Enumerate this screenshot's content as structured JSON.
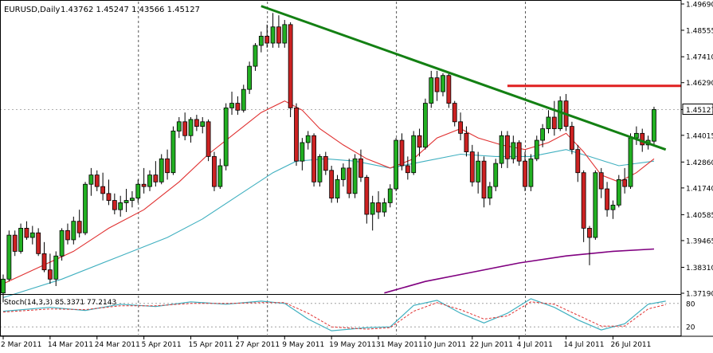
{
  "header": {
    "symbol": "EURUSD,Daily",
    "ohlc": "1.43762 1.45247 1.43566 1.45127"
  },
  "colors": {
    "background": "#ffffff",
    "bull": "#22b022",
    "bear": "#cc2222",
    "wick": "#000000",
    "ma_fast": "#e03030",
    "ma_mid": "#40b0c0",
    "ma_slow": "#800080",
    "trendline": "#138013",
    "resistance": "#e02020",
    "stoch_main": "#40b0c0",
    "stoch_signal": "#e03030",
    "grid": "#555555",
    "price_label_bg": "#ffffff"
  },
  "chart_data": [
    {
      "type": "candlestick",
      "name": "main-price-chart",
      "x_labels": [
        "2 Mar 2011",
        "14 Mar 2011",
        "24 Mar 2011",
        "5 Apr 2011",
        "15 Apr 2011",
        "27 Apr 2011",
        "9 May 2011",
        "19 May 2011",
        "31 May 2011",
        "10 Jun 2011",
        "22 Jun 2011",
        "4 Jul 2011",
        "14 Jul 2011",
        "26 Jul 2011"
      ],
      "y_ticks": [
        "1.49690",
        "1.48555",
        "1.47410",
        "1.46290",
        "1.45127",
        "1.44015",
        "1.42860",
        "1.41740",
        "1.40585",
        "1.39465",
        "1.38310",
        "1.37190"
      ],
      "ylim": [
        1.3719,
        1.4969
      ],
      "current_price": "1.45127",
      "candles": [
        [
          1.372,
          1.38,
          1.368,
          1.378
        ],
        [
          1.378,
          1.399,
          1.377,
          1.397
        ],
        [
          1.397,
          1.399,
          1.388,
          1.39
        ],
        [
          1.39,
          1.402,
          1.389,
          1.4
        ],
        [
          1.4,
          1.403,
          1.395,
          1.396
        ],
        [
          1.396,
          1.401,
          1.393,
          1.398
        ],
        [
          1.398,
          1.4,
          1.388,
          1.389
        ],
        [
          1.389,
          1.394,
          1.381,
          1.382
        ],
        [
          1.382,
          1.389,
          1.376,
          1.378
        ],
        [
          1.378,
          1.39,
          1.375,
          1.388
        ],
        [
          1.388,
          1.4,
          1.386,
          1.399
        ],
        [
          1.399,
          1.402,
          1.393,
          1.395
        ],
        [
          1.395,
          1.405,
          1.393,
          1.403
        ],
        [
          1.403,
          1.408,
          1.396,
          1.398
        ],
        [
          1.398,
          1.42,
          1.397,
          1.419
        ],
        [
          1.419,
          1.426,
          1.414,
          1.423
        ],
        [
          1.423,
          1.425,
          1.416,
          1.418
        ],
        [
          1.418,
          1.424,
          1.412,
          1.415
        ],
        [
          1.415,
          1.421,
          1.41,
          1.412
        ],
        [
          1.412,
          1.415,
          1.406,
          1.408
        ],
        [
          1.408,
          1.414,
          1.405,
          1.411
        ],
        [
          1.411,
          1.417,
          1.407,
          1.412
        ],
        [
          1.412,
          1.416,
          1.409,
          1.413
        ],
        [
          1.413,
          1.421,
          1.411,
          1.419
        ],
        [
          1.419,
          1.426,
          1.415,
          1.418
        ],
        [
          1.418,
          1.425,
          1.416,
          1.423
        ],
        [
          1.423,
          1.429,
          1.418,
          1.42
        ],
        [
          1.42,
          1.432,
          1.419,
          1.43
        ],
        [
          1.43,
          1.434,
          1.421,
          1.424
        ],
        [
          1.424,
          1.444,
          1.423,
          1.442
        ],
        [
          1.442,
          1.448,
          1.439,
          1.446
        ],
        [
          1.446,
          1.45,
          1.438,
          1.44
        ],
        [
          1.44,
          1.448,
          1.437,
          1.447
        ],
        [
          1.447,
          1.449,
          1.442,
          1.444
        ],
        [
          1.444,
          1.448,
          1.441,
          1.446
        ],
        [
          1.446,
          1.447,
          1.429,
          1.431
        ],
        [
          1.431,
          1.433,
          1.416,
          1.418
        ],
        [
          1.418,
          1.43,
          1.417,
          1.427
        ],
        [
          1.427,
          1.454,
          1.425,
          1.452
        ],
        [
          1.452,
          1.459,
          1.449,
          1.454
        ],
        [
          1.454,
          1.457,
          1.449,
          1.451
        ],
        [
          1.451,
          1.462,
          1.45,
          1.46
        ],
        [
          1.46,
          1.472,
          1.458,
          1.47
        ],
        [
          1.47,
          1.48,
          1.468,
          1.479
        ],
        [
          1.479,
          1.485,
          1.476,
          1.483
        ],
        [
          1.483,
          1.488,
          1.478,
          1.48
        ],
        [
          1.48,
          1.493,
          1.478,
          1.487
        ],
        [
          1.487,
          1.492,
          1.478,
          1.48
        ],
        [
          1.48,
          1.49,
          1.478,
          1.488
        ],
        [
          1.488,
          1.489,
          1.448,
          1.452
        ],
        [
          1.452,
          1.454,
          1.427,
          1.429
        ],
        [
          1.429,
          1.439,
          1.425,
          1.437
        ],
        [
          1.437,
          1.442,
          1.434,
          1.44
        ],
        [
          1.44,
          1.441,
          1.418,
          1.42
        ],
        [
          1.42,
          1.432,
          1.418,
          1.431
        ],
        [
          1.431,
          1.433,
          1.423,
          1.425
        ],
        [
          1.425,
          1.427,
          1.411,
          1.413
        ],
        [
          1.413,
          1.423,
          1.411,
          1.421
        ],
        [
          1.421,
          1.428,
          1.418,
          1.426
        ],
        [
          1.426,
          1.43,
          1.413,
          1.415
        ],
        [
          1.415,
          1.432,
          1.413,
          1.43
        ],
        [
          1.43,
          1.434,
          1.42,
          1.422
        ],
        [
          1.422,
          1.423,
          1.402,
          1.406
        ],
        [
          1.406,
          1.414,
          1.399,
          1.411
        ],
        [
          1.411,
          1.416,
          1.404,
          1.407
        ],
        [
          1.407,
          1.413,
          1.405,
          1.411
        ],
        [
          1.411,
          1.419,
          1.409,
          1.417
        ],
        [
          1.417,
          1.439,
          1.416,
          1.438
        ],
        [
          1.438,
          1.441,
          1.425,
          1.427
        ],
        [
          1.427,
          1.431,
          1.421,
          1.424
        ],
        [
          1.424,
          1.442,
          1.423,
          1.44
        ],
        [
          1.44,
          1.443,
          1.431,
          1.435
        ],
        [
          1.435,
          1.456,
          1.434,
          1.454
        ],
        [
          1.454,
          1.468,
          1.452,
          1.465
        ],
        [
          1.465,
          1.468,
          1.455,
          1.459
        ],
        [
          1.459,
          1.467,
          1.457,
          1.466
        ],
        [
          1.466,
          1.467,
          1.452,
          1.454
        ],
        [
          1.454,
          1.455,
          1.444,
          1.446
        ],
        [
          1.446,
          1.45,
          1.438,
          1.441
        ],
        [
          1.441,
          1.444,
          1.431,
          1.433
        ],
        [
          1.433,
          1.436,
          1.418,
          1.42
        ],
        [
          1.42,
          1.433,
          1.415,
          1.429
        ],
        [
          1.429,
          1.431,
          1.409,
          1.413
        ],
        [
          1.413,
          1.42,
          1.41,
          1.418
        ],
        [
          1.418,
          1.43,
          1.416,
          1.428
        ],
        [
          1.428,
          1.442,
          1.426,
          1.44
        ],
        [
          1.44,
          1.442,
          1.426,
          1.43
        ],
        [
          1.43,
          1.44,
          1.428,
          1.437
        ],
        [
          1.437,
          1.438,
          1.427,
          1.429
        ],
        [
          1.429,
          1.433,
          1.416,
          1.418
        ],
        [
          1.418,
          1.432,
          1.416,
          1.43
        ],
        [
          1.43,
          1.44,
          1.429,
          1.438
        ],
        [
          1.438,
          1.445,
          1.435,
          1.443
        ],
        [
          1.443,
          1.451,
          1.441,
          1.448
        ],
        [
          1.448,
          1.455,
          1.44,
          1.443
        ],
        [
          1.443,
          1.457,
          1.442,
          1.455
        ],
        [
          1.455,
          1.458,
          1.442,
          1.444
        ],
        [
          1.444,
          1.446,
          1.432,
          1.434
        ],
        [
          1.434,
          1.436,
          1.42,
          1.424
        ],
        [
          1.424,
          1.425,
          1.394,
          1.4
        ],
        [
          1.4,
          1.401,
          1.384,
          1.396
        ],
        [
          1.396,
          1.425,
          1.395,
          1.424
        ],
        [
          1.424,
          1.426,
          1.413,
          1.417
        ],
        [
          1.417,
          1.42,
          1.405,
          1.408
        ],
        [
          1.408,
          1.412,
          1.404,
          1.41
        ],
        [
          1.41,
          1.423,
          1.409,
          1.421
        ],
        [
          1.421,
          1.426,
          1.415,
          1.418
        ],
        [
          1.418,
          1.441,
          1.417,
          1.439
        ],
        [
          1.439,
          1.444,
          1.436,
          1.441
        ],
        [
          1.441,
          1.443,
          1.433,
          1.436
        ],
        [
          1.436,
          1.44,
          1.434,
          1.438
        ],
        [
          1.4376,
          1.4525,
          1.4357,
          1.4513
        ]
      ],
      "ma_fast": [
        [
          0,
          1.376
        ],
        [
          6,
          1.383
        ],
        [
          12,
          1.39
        ],
        [
          18,
          1.4
        ],
        [
          24,
          1.408
        ],
        [
          30,
          1.42
        ],
        [
          35,
          1.432
        ],
        [
          40,
          1.442
        ],
        [
          44,
          1.45
        ],
        [
          48,
          1.455
        ],
        [
          51,
          1.451
        ],
        [
          54,
          1.443
        ],
        [
          58,
          1.436
        ],
        [
          62,
          1.43
        ],
        [
          66,
          1.426
        ],
        [
          70,
          1.43
        ],
        [
          74,
          1.439
        ],
        [
          78,
          1.443
        ],
        [
          81,
          1.439
        ],
        [
          85,
          1.436
        ],
        [
          89,
          1.434
        ],
        [
          93,
          1.437
        ],
        [
          96,
          1.441
        ],
        [
          99,
          1.433
        ],
        [
          102,
          1.423
        ],
        [
          105,
          1.42
        ],
        [
          108,
          1.424
        ],
        [
          111,
          1.43
        ]
      ],
      "ma_mid": [
        [
          0,
          1.37
        ],
        [
          10,
          1.378
        ],
        [
          20,
          1.388
        ],
        [
          28,
          1.396
        ],
        [
          34,
          1.404
        ],
        [
          40,
          1.414
        ],
        [
          46,
          1.424
        ],
        [
          50,
          1.429
        ],
        [
          55,
          1.43
        ],
        [
          60,
          1.429
        ],
        [
          66,
          1.426
        ],
        [
          72,
          1.429
        ],
        [
          78,
          1.432
        ],
        [
          84,
          1.431
        ],
        [
          90,
          1.431
        ],
        [
          96,
          1.434
        ],
        [
          100,
          1.431
        ],
        [
          105,
          1.427
        ],
        [
          111,
          1.429
        ]
      ],
      "ma_slow": [
        [
          65,
          1.372
        ],
        [
          72,
          1.377
        ],
        [
          80,
          1.381
        ],
        [
          88,
          1.385
        ],
        [
          96,
          1.388
        ],
        [
          104,
          1.39
        ],
        [
          111,
          1.391
        ]
      ],
      "trendline": [
        [
          44,
          1.496
        ],
        [
          113,
          1.434
        ]
      ],
      "resistance": [
        [
          86,
          1.4615
        ],
        [
          113,
          1.4615
        ]
      ],
      "vertical_separators": [
        23,
        45,
        67,
        89
      ],
      "xtick_positions": [
        0,
        8,
        16,
        24,
        32,
        40,
        48,
        56,
        64,
        72,
        80,
        88,
        96,
        104
      ]
    },
    {
      "type": "line",
      "name": "stochastic-oscillator",
      "label": "Stoch(14,3,3) 85.3371 77.2143",
      "ylim": [
        0,
        100
      ],
      "y_ticks": [
        "80",
        "20"
      ],
      "series": [
        {
          "values": [
            [
              0,
              60
            ],
            [
              8,
              70
            ],
            [
              14,
              62
            ],
            [
              20,
              78
            ],
            [
              26,
              72
            ],
            [
              32,
              84
            ],
            [
              38,
              78
            ],
            [
              44,
              86
            ],
            [
              48,
              80
            ],
            [
              52,
              40
            ],
            [
              56,
              10
            ],
            [
              62,
              18
            ],
            [
              66,
              20
            ],
            [
              70,
              75
            ],
            [
              74,
              88
            ],
            [
              78,
              55
            ],
            [
              82,
              30
            ],
            [
              86,
              55
            ],
            [
              90,
              92
            ],
            [
              94,
              70
            ],
            [
              98,
              38
            ],
            [
              102,
              12
            ],
            [
              106,
              28
            ],
            [
              110,
              78
            ],
            [
              113,
              86
            ]
          ]
        },
        {
          "values": [
            [
              0,
              58
            ],
            [
              8,
              66
            ],
            [
              14,
              64
            ],
            [
              20,
              74
            ],
            [
              26,
              74
            ],
            [
              32,
              80
            ],
            [
              38,
              80
            ],
            [
              44,
              82
            ],
            [
              48,
              82
            ],
            [
              52,
              55
            ],
            [
              56,
              20
            ],
            [
              62,
              14
            ],
            [
              66,
              18
            ],
            [
              70,
              60
            ],
            [
              74,
              82
            ],
            [
              78,
              64
            ],
            [
              82,
              40
            ],
            [
              86,
              48
            ],
            [
              90,
              84
            ],
            [
              94,
              78
            ],
            [
              98,
              50
            ],
            [
              102,
              22
            ],
            [
              106,
              22
            ],
            [
              110,
              66
            ],
            [
              113,
              77
            ]
          ]
        }
      ]
    }
  ]
}
